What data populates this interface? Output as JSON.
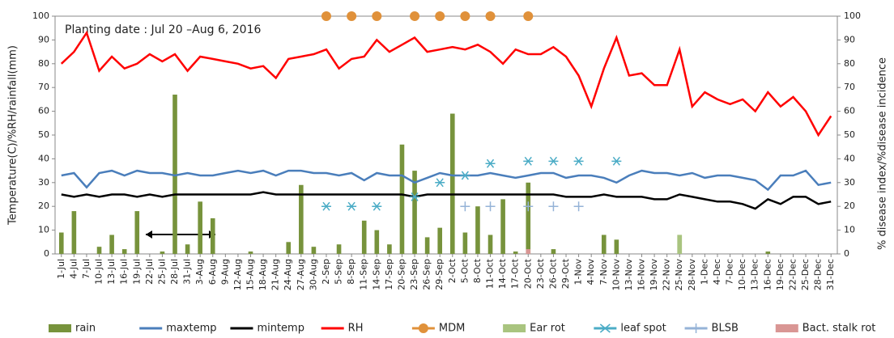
{
  "chart_data": {
    "type": "combo",
    "annotation": "Planting date : Jul 20 –Aug 6, 2016",
    "ylabel": "Temperature(C)/%RH/rainfall(mm)",
    "y2label": "% disease index/%disease incidence",
    "ylim": [
      0,
      100
    ],
    "yticks": [
      0,
      10,
      20,
      30,
      40,
      50,
      60,
      70,
      80,
      90,
      100
    ],
    "y2lim": [
      0,
      100
    ],
    "y2ticks": [
      0,
      10,
      20,
      30,
      40,
      50,
      60,
      70,
      80,
      90,
      100
    ],
    "grid": false,
    "legend": "bottom",
    "categories": [
      "1-Jul",
      "4-Jul",
      "7-Jul",
      "10-Jul",
      "13-Jul",
      "16-Jul",
      "19-Jul",
      "22-Jul",
      "25-Jul",
      "28-Jul",
      "31-Jul",
      "3-Aug",
      "6-Aug",
      "9-Aug",
      "12-Aug",
      "15-Aug",
      "18-Aug",
      "21-Aug",
      "24-Aug",
      "27-Aug",
      "30-Aug",
      "2-Sep",
      "5-Sep",
      "8-Sep",
      "11-Sep",
      "14-Sep",
      "17-Sep",
      "20-Sep",
      "23-Sep",
      "26-Sep",
      "29-Sep",
      "2-Oct",
      "5-Oct",
      "8-Oct",
      "11-Oct",
      "14-Oct",
      "17-Oct",
      "20-Oct",
      "23-Oct",
      "26-Oct",
      "29-Oct",
      "1-Nov",
      "4-Nov",
      "7-Nov",
      "10-Nov",
      "13-Nov",
      "16-Nov",
      "19-Nov",
      "22-Nov",
      "25-Nov",
      "28-Nov",
      "1-Dec",
      "4-Dec",
      "7-Dec",
      "10-Dec",
      "13-Dec",
      "16-Dec",
      "19-Dec",
      "22-Dec",
      "25-Dec",
      "28-Dec",
      "31-Dec"
    ],
    "series": [
      {
        "name": "rain",
        "type": "bar",
        "color": "#77933c",
        "values": [
          9,
          18,
          0,
          3,
          8,
          2,
          18,
          0,
          1,
          67,
          4,
          22,
          15,
          0,
          0,
          1,
          0,
          0,
          5,
          29,
          3,
          0,
          4,
          0,
          14,
          10,
          4,
          46,
          35,
          7,
          11,
          59,
          9,
          20,
          8,
          23,
          1,
          30,
          0,
          2,
          0,
          0,
          0,
          8,
          6,
          0,
          0,
          0,
          0,
          8,
          0,
          0,
          0,
          0,
          0,
          0,
          1,
          0,
          0,
          0,
          0,
          0
        ]
      },
      {
        "name": "maxtemp",
        "type": "line",
        "color": "#4a7ebb",
        "values": [
          33,
          34,
          28,
          34,
          35,
          33,
          35,
          34,
          34,
          33,
          34,
          33,
          33,
          34,
          35,
          34,
          35,
          33,
          35,
          35,
          34,
          34,
          33,
          34,
          31,
          34,
          33,
          33,
          30,
          32,
          34,
          33,
          33,
          33,
          34,
          33,
          32,
          33,
          34,
          34,
          32,
          33,
          33,
          32,
          30,
          33,
          35,
          34,
          34,
          33,
          34,
          32,
          33,
          33,
          32,
          31,
          27,
          33,
          33,
          35,
          29,
          30
        ]
      },
      {
        "name": "mintemp",
        "type": "line",
        "color": "#000000",
        "values": [
          25,
          24,
          25,
          24,
          25,
          25,
          24,
          25,
          24,
          25,
          25,
          25,
          25,
          25,
          25,
          25,
          26,
          25,
          25,
          25,
          25,
          25,
          25,
          25,
          25,
          25,
          25,
          25,
          24,
          25,
          25,
          25,
          25,
          25,
          25,
          25,
          25,
          25,
          25,
          25,
          24,
          24,
          24,
          25,
          24,
          24,
          24,
          23,
          23,
          25,
          24,
          23,
          22,
          22,
          21,
          19,
          23,
          21,
          24,
          24,
          21,
          22
        ]
      },
      {
        "name": "RH",
        "type": "line",
        "color": "#ff0000",
        "values": [
          80,
          85,
          93,
          77,
          83,
          78,
          80,
          84,
          81,
          84,
          77,
          83,
          82,
          81,
          80,
          78,
          79,
          74,
          82,
          83,
          84,
          86,
          78,
          82,
          83,
          90,
          85,
          88,
          91,
          85,
          86,
          87,
          86,
          88,
          85,
          80,
          86,
          84,
          84,
          87,
          83,
          75,
          62,
          78,
          91,
          75,
          76,
          71,
          71,
          86,
          62,
          68,
          65,
          63,
          65,
          60,
          68,
          62,
          66,
          60,
          50,
          58
        ]
      },
      {
        "name": "MDM",
        "type": "scatter",
        "marker": "circle",
        "axis": "y2",
        "color": "#e0913a",
        "values": [
          null,
          null,
          null,
          null,
          null,
          null,
          null,
          null,
          null,
          null,
          null,
          null,
          null,
          null,
          null,
          null,
          null,
          null,
          null,
          null,
          null,
          100,
          null,
          100,
          null,
          100,
          null,
          null,
          100,
          null,
          100,
          null,
          100,
          null,
          100,
          null,
          null,
          100,
          null,
          null,
          null,
          null,
          null,
          null,
          null,
          null,
          null,
          null,
          null,
          null,
          null,
          null,
          null,
          null,
          null,
          null,
          null,
          null,
          null,
          null,
          null,
          null
        ]
      },
      {
        "name": "Ear rot",
        "type": "bar",
        "axis": "y2",
        "color": "#a9c47f",
        "values": [
          null,
          null,
          null,
          null,
          null,
          null,
          null,
          null,
          null,
          null,
          null,
          null,
          null,
          null,
          null,
          null,
          null,
          null,
          null,
          null,
          null,
          null,
          null,
          null,
          null,
          null,
          null,
          null,
          null,
          null,
          null,
          null,
          null,
          null,
          null,
          null,
          null,
          null,
          null,
          null,
          null,
          null,
          null,
          null,
          null,
          null,
          null,
          null,
          null,
          8,
          null,
          null,
          null,
          null,
          null,
          null,
          null,
          null,
          null,
          null,
          null,
          null
        ]
      },
      {
        "name": "leaf spot",
        "type": "scatter",
        "marker": "asterisk",
        "axis": "y2",
        "color": "#4bacc6",
        "values": [
          null,
          null,
          null,
          null,
          null,
          null,
          null,
          null,
          null,
          null,
          null,
          null,
          null,
          null,
          null,
          null,
          null,
          null,
          null,
          null,
          null,
          20,
          null,
          20,
          null,
          20,
          null,
          null,
          24,
          null,
          30,
          null,
          33,
          null,
          38,
          null,
          null,
          39,
          null,
          39,
          null,
          39,
          null,
          null,
          39,
          null,
          null,
          null,
          null,
          null,
          null,
          null,
          null,
          null,
          null,
          null,
          null,
          null,
          null,
          null,
          null,
          null
        ]
      },
      {
        "name": "BLSB",
        "type": "scatter",
        "marker": "plus",
        "axis": "y2",
        "color": "#95b3d7",
        "values": [
          null,
          null,
          null,
          null,
          null,
          null,
          null,
          null,
          null,
          null,
          null,
          null,
          null,
          null,
          null,
          null,
          null,
          null,
          null,
          null,
          null,
          null,
          null,
          null,
          null,
          null,
          null,
          null,
          null,
          null,
          null,
          null,
          20,
          null,
          20,
          null,
          null,
          20,
          null,
          20,
          null,
          20,
          null,
          null,
          null,
          null,
          null,
          null,
          null,
          null,
          null,
          null,
          null,
          null,
          null,
          null,
          null,
          null,
          null,
          null,
          null,
          null
        ]
      },
      {
        "name": "Bact. stalk rot",
        "type": "bar",
        "axis": "y2",
        "color": "#d99694",
        "values": [
          null,
          null,
          null,
          null,
          null,
          null,
          null,
          null,
          null,
          null,
          null,
          null,
          null,
          null,
          null,
          null,
          null,
          null,
          null,
          null,
          null,
          null,
          null,
          null,
          null,
          null,
          null,
          null,
          null,
          null,
          null,
          null,
          null,
          null,
          null,
          null,
          null,
          2,
          null,
          null,
          null,
          null,
          null,
          null,
          null,
          null,
          null,
          null,
          null,
          null,
          null,
          null,
          null,
          null,
          null,
          null,
          null,
          null,
          null,
          null,
          null,
          null
        ]
      }
    ]
  }
}
